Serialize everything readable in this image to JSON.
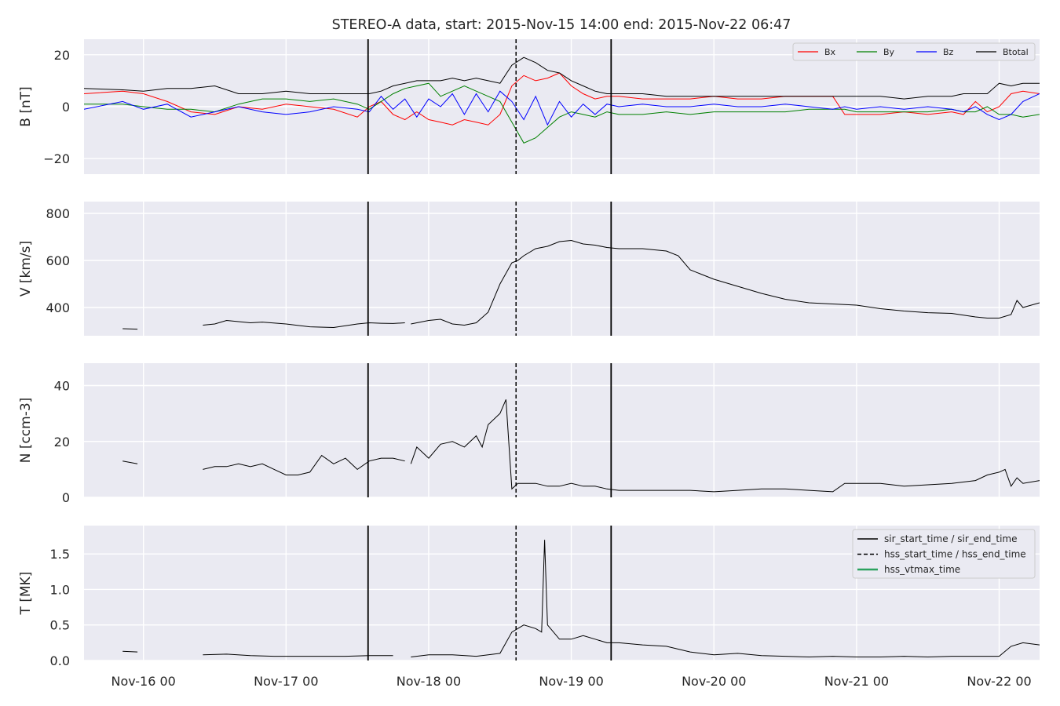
{
  "figure": {
    "title": "STEREO-A data, start: 2015-Nov-15 14:00  end: 2015-Nov-22 06:47",
    "background": "#ffffff",
    "panel_background": "#eaeaf2",
    "grid_color": "#ffffff"
  },
  "colors": {
    "bx": "#ff0000",
    "by": "#008000",
    "bz": "#0000ff",
    "btotal": "#000000",
    "marker": "#000000",
    "vtmax": "#2ca25f"
  },
  "time_axis": {
    "start_hours": 0,
    "end_hours": 160.8,
    "tick_hours": [
      10,
      34,
      58,
      82,
      106,
      130,
      154
    ],
    "tick_labels": [
      "Nov-16 00",
      "Nov-17 00",
      "Nov-18 00",
      "Nov-19 00",
      "Nov-20 00",
      "Nov-21 00",
      "Nov-22 00"
    ]
  },
  "markers": {
    "sir_start_hours": 47.8,
    "hss_start_hours": 72.7,
    "sir_end_hours": 88.7
  },
  "legends": {
    "b_panel": [
      "Bx",
      "By",
      "Bz",
      "Btotal"
    ],
    "t_panel": [
      "sir_start_time / sir_end_time",
      "hss_start_time / hss_end_time",
      "hss_vtmax_time"
    ]
  },
  "chart_data": [
    {
      "type": "line",
      "ylabel": "B [nT]",
      "ylim": [
        -26,
        26
      ],
      "yticks": [
        20,
        0,
        -20
      ],
      "ytick_labels": [
        "20",
        "0",
        "−20"
      ],
      "legend": "top-right",
      "grid": true,
      "series": [
        {
          "name": "Bx",
          "x": [
            0,
            6.5,
            10,
            14,
            18,
            22,
            26,
            30,
            34,
            38,
            42,
            46,
            48,
            50,
            52,
            54,
            56,
            58,
            60,
            62,
            64,
            66,
            68,
            70,
            72,
            74,
            76,
            78,
            80,
            82,
            84,
            86,
            88,
            90,
            94,
            98,
            102,
            106,
            110,
            114,
            118,
            122,
            126,
            128,
            130,
            134,
            138,
            142,
            146,
            148,
            150,
            152,
            154,
            156,
            158,
            160.8
          ],
          "y": [
            5,
            6,
            5,
            2,
            -2,
            -3,
            0,
            -1,
            1,
            0,
            -1,
            -4,
            0,
            2,
            -3,
            -5,
            -2,
            -5,
            -6,
            -7,
            -5,
            -6,
            -7,
            -3,
            8,
            12,
            10,
            11,
            13,
            8,
            5,
            3,
            4,
            4,
            3,
            3,
            3,
            4,
            3,
            3,
            4,
            4,
            4,
            -3,
            -3,
            -3,
            -2,
            -3,
            -2,
            -3,
            2,
            -2,
            0,
            5,
            6,
            5
          ]
        },
        {
          "name": "By",
          "x": [
            0,
            6.5,
            10,
            14,
            18,
            22,
            26,
            30,
            34,
            38,
            42,
            46,
            48,
            50,
            52,
            54,
            56,
            58,
            60,
            62,
            64,
            66,
            68,
            70,
            72,
            74,
            76,
            78,
            80,
            82,
            84,
            86,
            88,
            90,
            94,
            98,
            102,
            106,
            110,
            114,
            118,
            122,
            126,
            128,
            130,
            134,
            138,
            142,
            146,
            148,
            150,
            152,
            154,
            156,
            158,
            160.8
          ],
          "y": [
            1,
            1,
            0,
            -1,
            -1,
            -2,
            1,
            3,
            3,
            2,
            3,
            1,
            -1,
            2,
            5,
            7,
            8,
            9,
            4,
            6,
            8,
            6,
            4,
            2,
            -6,
            -14,
            -12,
            -8,
            -4,
            -2,
            -3,
            -4,
            -2,
            -3,
            -3,
            -2,
            -3,
            -2,
            -2,
            -2,
            -2,
            -1,
            -1,
            -1,
            -2,
            -2,
            -2,
            -2,
            -1,
            -2,
            -2,
            0,
            -3,
            -3,
            -4,
            -3
          ]
        },
        {
          "name": "Bz",
          "x": [
            0,
            6.5,
            10,
            14,
            18,
            22,
            26,
            30,
            34,
            38,
            42,
            46,
            48,
            50,
            52,
            54,
            56,
            58,
            60,
            62,
            64,
            66,
            68,
            70,
            72,
            74,
            76,
            78,
            80,
            82,
            84,
            86,
            88,
            90,
            94,
            98,
            102,
            106,
            110,
            114,
            118,
            122,
            126,
            128,
            130,
            134,
            138,
            142,
            146,
            148,
            150,
            152,
            154,
            156,
            158,
            160.8
          ],
          "y": [
            -1,
            2,
            -1,
            1,
            -4,
            -2,
            0,
            -2,
            -3,
            -2,
            0,
            -1,
            -2,
            4,
            -1,
            3,
            -4,
            3,
            0,
            5,
            -3,
            5,
            -2,
            6,
            2,
            -5,
            4,
            -7,
            2,
            -4,
            1,
            -3,
            1,
            0,
            1,
            0,
            0,
            1,
            0,
            0,
            1,
            0,
            -1,
            0,
            -1,
            0,
            -1,
            0,
            -1,
            -2,
            0,
            -3,
            -5,
            -3,
            2,
            5
          ]
        },
        {
          "name": "Btotal",
          "x": [
            0,
            6.5,
            10,
            14,
            18,
            22,
            26,
            30,
            34,
            38,
            42,
            46,
            48,
            50,
            52,
            54,
            56,
            58,
            60,
            62,
            64,
            66,
            68,
            70,
            72,
            74,
            76,
            78,
            80,
            82,
            84,
            86,
            88,
            90,
            94,
            98,
            102,
            106,
            110,
            114,
            118,
            122,
            126,
            128,
            130,
            134,
            138,
            142,
            146,
            148,
            150,
            152,
            154,
            156,
            158,
            160.8
          ],
          "y": [
            7,
            6.5,
            6,
            7,
            7,
            8,
            5,
            5,
            6,
            5,
            5,
            5,
            5,
            6,
            8,
            9,
            10,
            10,
            10,
            11,
            10,
            11,
            10,
            9,
            16,
            19,
            17,
            14,
            13,
            10,
            8,
            6,
            5,
            5,
            5,
            4,
            4,
            4,
            4,
            4,
            4,
            4,
            4,
            4,
            4,
            4,
            3,
            4,
            4,
            5,
            5,
            5,
            9,
            8,
            9,
            9
          ]
        }
      ]
    },
    {
      "type": "line",
      "ylabel": "V [km/s]",
      "ylim": [
        280,
        850
      ],
      "yticks": [
        800,
        600,
        400
      ],
      "ytick_labels": [
        "800",
        "600",
        "400"
      ],
      "grid": true,
      "series": [
        {
          "x": [
            6.5,
            9,
            null,
            20,
            22,
            24,
            26,
            28,
            30,
            34,
            38,
            42,
            46,
            48,
            50,
            52,
            54,
            null,
            55,
            58,
            60,
            62,
            64,
            66,
            68,
            70,
            72,
            73,
            74,
            76,
            78,
            80,
            82,
            84,
            86,
            88,
            90,
            94,
            98,
            100,
            102,
            104,
            106,
            110,
            114,
            118,
            122,
            126,
            130,
            134,
            138,
            142,
            146,
            150,
            152,
            154,
            156,
            157,
            158,
            160.8
          ],
          "y": [
            310,
            308,
            null,
            325,
            330,
            345,
            340,
            335,
            338,
            330,
            318,
            315,
            330,
            335,
            333,
            332,
            335,
            null,
            330,
            345,
            350,
            330,
            325,
            335,
            380,
            500,
            590,
            600,
            620,
            650,
            660,
            680,
            685,
            670,
            665,
            655,
            650,
            650,
            640,
            620,
            560,
            540,
            520,
            490,
            460,
            435,
            420,
            415,
            410,
            395,
            385,
            378,
            375,
            360,
            355,
            355,
            370,
            430,
            400,
            420
          ]
        }
      ]
    },
    {
      "type": "line",
      "ylabel": "N [ccm-3]",
      "ylim": [
        0,
        48
      ],
      "yticks": [
        40,
        20,
        0
      ],
      "ytick_labels": [
        "40",
        "20",
        "0"
      ],
      "grid": true,
      "series": [
        {
          "x": [
            6.5,
            9,
            null,
            20,
            22,
            24,
            26,
            28,
            30,
            32,
            34,
            36,
            38,
            40,
            42,
            44,
            46,
            48,
            50,
            52,
            54,
            null,
            55,
            56,
            58,
            60,
            62,
            64,
            66,
            67,
            68,
            70,
            71,
            72,
            73,
            74,
            76,
            78,
            80,
            82,
            84,
            86,
            88,
            90,
            94,
            98,
            102,
            106,
            110,
            114,
            118,
            122,
            126,
            128,
            130,
            134,
            138,
            142,
            146,
            150,
            152,
            154,
            155,
            156,
            157,
            158,
            160.8
          ],
          "y": [
            13,
            12,
            null,
            10,
            11,
            11,
            12,
            11,
            12,
            10,
            8,
            8,
            9,
            15,
            12,
            14,
            10,
            13,
            14,
            14,
            13,
            null,
            12,
            18,
            14,
            19,
            20,
            18,
            22,
            18,
            26,
            30,
            35,
            3,
            5,
            5,
            5,
            4,
            4,
            5,
            4,
            4,
            3,
            2.5,
            2.5,
            2.5,
            2.5,
            2,
            2.5,
            3,
            3,
            2.5,
            2,
            5,
            5,
            5,
            4,
            4.5,
            5,
            6,
            8,
            9,
            10,
            4,
            7,
            5,
            6
          ]
        }
      ]
    },
    {
      "type": "line",
      "ylabel": "T [MK]",
      "ylim": [
        0,
        1.9
      ],
      "yticks": [
        1.5,
        1.0,
        0.5,
        0.0
      ],
      "ytick_labels": [
        "1.5",
        "1.0",
        "0.5",
        "0.0"
      ],
      "legend": "top-right",
      "grid": true,
      "series": [
        {
          "x": [
            6.5,
            9,
            null,
            20,
            24,
            28,
            32,
            36,
            40,
            44,
            48,
            52,
            null,
            55,
            58,
            62,
            66,
            70,
            72,
            74,
            76,
            77,
            77.5,
            78,
            80,
            82,
            84,
            86,
            88,
            90,
            94,
            98,
            102,
            106,
            110,
            114,
            118,
            122,
            126,
            130,
            134,
            138,
            142,
            146,
            150,
            154,
            156,
            158,
            160.8
          ],
          "y": [
            0.13,
            0.12,
            null,
            0.08,
            0.09,
            0.07,
            0.06,
            0.06,
            0.06,
            0.06,
            0.07,
            0.07,
            null,
            0.05,
            0.08,
            0.08,
            0.06,
            0.1,
            0.4,
            0.5,
            0.45,
            0.4,
            1.7,
            0.5,
            0.3,
            0.3,
            0.35,
            0.3,
            0.25,
            0.25,
            0.22,
            0.2,
            0.12,
            0.08,
            0.1,
            0.07,
            0.06,
            0.05,
            0.06,
            0.05,
            0.05,
            0.06,
            0.05,
            0.06,
            0.06,
            0.06,
            0.2,
            0.25,
            0.22
          ]
        }
      ]
    }
  ]
}
